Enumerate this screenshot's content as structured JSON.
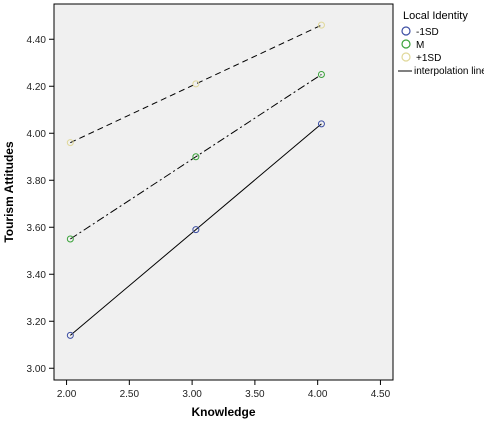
{
  "chart_data": {
    "type": "line",
    "title": "",
    "xlabel": "Knowledge",
    "ylabel": "Tourism Attitudes",
    "xlim": [
      1.9,
      4.6
    ],
    "ylim": [
      2.95,
      4.55
    ],
    "x_ticks": [
      "2.00",
      "2.50",
      "3.00",
      "3.50",
      "4.00",
      "4.50"
    ],
    "y_ticks": [
      "3.00",
      "3.20",
      "3.40",
      "3.60",
      "3.80",
      "4.00",
      "4.20",
      "4.40"
    ],
    "grid": false,
    "legend_title": "Local Identity",
    "legend_position": "right",
    "series": [
      {
        "name": "-1SD",
        "color": "#3c4ea3",
        "line_style": "solid",
        "x": [
          2.03,
          3.03,
          4.03
        ],
        "y": [
          3.14,
          3.59,
          4.04
        ]
      },
      {
        "name": "M",
        "color": "#3aa33a",
        "line_style": "dash-dot",
        "x": [
          2.03,
          3.03,
          4.03
        ],
        "y": [
          3.55,
          3.9,
          4.25
        ]
      },
      {
        "name": "+1SD",
        "color": "#e0d89a",
        "line_style": "dashed",
        "x": [
          2.03,
          3.03,
          4.03
        ],
        "y": [
          3.96,
          4.21,
          4.46
        ]
      }
    ],
    "interpolation_label": "interpolation line"
  }
}
